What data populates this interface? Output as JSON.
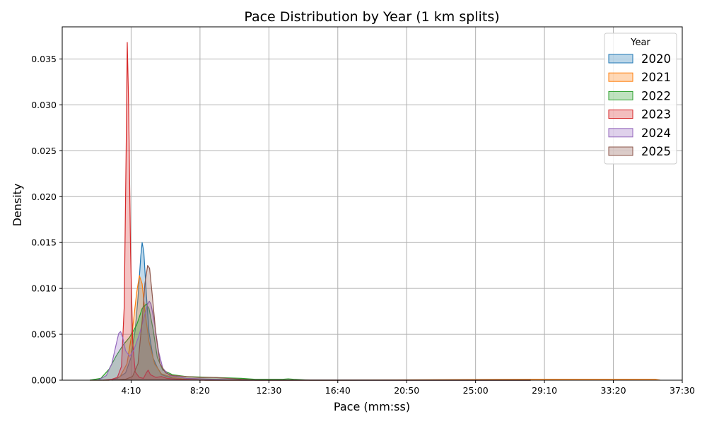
{
  "chart_data": {
    "type": "area",
    "title": "Pace Distribution by Year (1 km splits)",
    "xlabel": "Pace (mm:ss)",
    "ylabel": "Density",
    "xlim": [
      0,
      2250
    ],
    "ylim": [
      0,
      0.0385
    ],
    "x_ticks": [
      {
        "value": 250,
        "label": "4:10"
      },
      {
        "value": 500,
        "label": "8:20"
      },
      {
        "value": 750,
        "label": "12:30"
      },
      {
        "value": 1000,
        "label": "16:40"
      },
      {
        "value": 1250,
        "label": "20:50"
      },
      {
        "value": 1500,
        "label": "25:00"
      },
      {
        "value": 1750,
        "label": "29:10"
      },
      {
        "value": 2000,
        "label": "33:20"
      },
      {
        "value": 2250,
        "label": "37:30"
      }
    ],
    "y_ticks": [
      {
        "value": 0,
        "label": "0.000"
      },
      {
        "value": 0.005,
        "label": "0.005"
      },
      {
        "value": 0.01,
        "label": "0.010"
      },
      {
        "value": 0.015,
        "label": "0.015"
      },
      {
        "value": 0.02,
        "label": "0.020"
      },
      {
        "value": 0.025,
        "label": "0.025"
      },
      {
        "value": 0.03,
        "label": "0.030"
      },
      {
        "value": 0.035,
        "label": "0.035"
      }
    ],
    "grid": true,
    "legend": {
      "title": "Year",
      "position": "top-right"
    },
    "series": [
      {
        "name": "2020",
        "color": "#1f77b4",
        "points": [
          [
            100,
            0
          ],
          [
            170,
            0
          ],
          [
            200,
            0.0002
          ],
          [
            230,
            0.0008
          ],
          [
            250,
            0.0025
          ],
          [
            265,
            0.0055
          ],
          [
            275,
            0.009
          ],
          [
            285,
            0.0135
          ],
          [
            290,
            0.015
          ],
          [
            296,
            0.014
          ],
          [
            305,
            0.0095
          ],
          [
            315,
            0.0052
          ],
          [
            330,
            0.0024
          ],
          [
            345,
            0.0014
          ],
          [
            360,
            0.0006
          ],
          [
            390,
            0.0003
          ],
          [
            450,
            0.0001
          ],
          [
            520,
            0
          ],
          [
            700,
            0
          ],
          [
            1700,
            0
          ]
        ]
      },
      {
        "name": "2021",
        "color": "#ff7f0e",
        "points": [
          [
            100,
            0
          ],
          [
            170,
            0
          ],
          [
            210,
            0.0004
          ],
          [
            235,
            0.0018
          ],
          [
            255,
            0.0055
          ],
          [
            270,
            0.0095
          ],
          [
            280,
            0.0114
          ],
          [
            290,
            0.0105
          ],
          [
            300,
            0.0075
          ],
          [
            315,
            0.0042
          ],
          [
            335,
            0.0018
          ],
          [
            360,
            0.0007
          ],
          [
            400,
            0.0003
          ],
          [
            450,
            0.0001
          ],
          [
            520,
            0
          ],
          [
            1000,
            0
          ],
          [
            1700,
            0.0001
          ],
          [
            2000,
            0.0001
          ],
          [
            2150,
            0.0001
          ],
          [
            2170,
            0
          ]
        ]
      },
      {
        "name": "2022",
        "color": "#2ca02c",
        "points": [
          [
            100,
            0
          ],
          [
            140,
            0.0002
          ],
          [
            170,
            0.0012
          ],
          [
            195,
            0.0026
          ],
          [
            220,
            0.0038
          ],
          [
            245,
            0.0047
          ],
          [
            270,
            0.006
          ],
          [
            290,
            0.0078
          ],
          [
            305,
            0.0083
          ],
          [
            315,
            0.0078
          ],
          [
            330,
            0.0055
          ],
          [
            345,
            0.0025
          ],
          [
            365,
            0.0011
          ],
          [
            400,
            0.0006
          ],
          [
            450,
            0.0004
          ],
          [
            550,
            0.0003
          ],
          [
            650,
            0.0002
          ],
          [
            700,
            0.0001
          ],
          [
            800,
            0.0001
          ],
          [
            820,
            0.00015
          ],
          [
            840,
            0.0001
          ],
          [
            900,
            0
          ],
          [
            1700,
            0
          ]
        ]
      },
      {
        "name": "2023",
        "color": "#d62728",
        "points": [
          [
            150,
            0
          ],
          [
            180,
            0.0001
          ],
          [
            200,
            0.0003
          ],
          [
            215,
            0.0015
          ],
          [
            225,
            0.008
          ],
          [
            232,
            0.025
          ],
          [
            236,
            0.0368
          ],
          [
            241,
            0.03
          ],
          [
            248,
            0.014
          ],
          [
            256,
            0.004
          ],
          [
            265,
            0.0009
          ],
          [
            280,
            0.0003
          ],
          [
            295,
            0.0002
          ],
          [
            305,
            0.0008
          ],
          [
            312,
            0.0011
          ],
          [
            320,
            0.0006
          ],
          [
            340,
            0.0003
          ],
          [
            360,
            0.0004
          ],
          [
            380,
            0.0002
          ],
          [
            420,
            0.0001
          ],
          [
            500,
            0
          ],
          [
            1700,
            0
          ]
        ]
      },
      {
        "name": "2024",
        "color": "#9467bd",
        "points": [
          [
            130,
            0
          ],
          [
            160,
            0.0005
          ],
          [
            180,
            0.0018
          ],
          [
            195,
            0.0038
          ],
          [
            205,
            0.0051
          ],
          [
            212,
            0.0053
          ],
          [
            220,
            0.0046
          ],
          [
            230,
            0.0032
          ],
          [
            245,
            0.0026
          ],
          [
            260,
            0.0033
          ],
          [
            280,
            0.005
          ],
          [
            300,
            0.0072
          ],
          [
            310,
            0.0083
          ],
          [
            316,
            0.0086
          ],
          [
            322,
            0.0083
          ],
          [
            335,
            0.0062
          ],
          [
            350,
            0.0031
          ],
          [
            365,
            0.0013
          ],
          [
            390,
            0.0005
          ],
          [
            450,
            0.0002
          ],
          [
            550,
            0.0001
          ],
          [
            650,
            0
          ],
          [
            1600,
            0
          ],
          [
            1700,
            0
          ]
        ]
      },
      {
        "name": "2025",
        "color": "#8c564b",
        "points": [
          [
            180,
            0
          ],
          [
            230,
            0.0001
          ],
          [
            255,
            0.0004
          ],
          [
            275,
            0.0018
          ],
          [
            290,
            0.0065
          ],
          [
            300,
            0.0105
          ],
          [
            310,
            0.0125
          ],
          [
            317,
            0.0122
          ],
          [
            325,
            0.0098
          ],
          [
            340,
            0.005
          ],
          [
            355,
            0.0018
          ],
          [
            375,
            0.0008
          ],
          [
            400,
            0.0005
          ],
          [
            450,
            0.0004
          ],
          [
            500,
            0.0003
          ],
          [
            550,
            0.0003
          ],
          [
            600,
            0.0002
          ],
          [
            650,
            0.0001
          ],
          [
            700,
            0
          ],
          [
            1700,
            0
          ]
        ]
      }
    ]
  }
}
